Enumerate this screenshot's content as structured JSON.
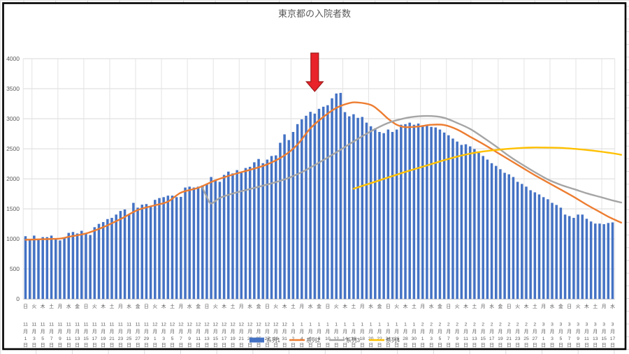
{
  "chart": {
    "title": "東京都の入院者数",
    "colors": {
      "bar": "#4472C4",
      "line2": "#ED7D31",
      "line3": "#A5A5A5",
      "line4": "#FFC000",
      "gridline": "#D9D9D9",
      "axis_text": "#595959",
      "arrow_fill": "#E8232A",
      "arrow_stroke": "#9E1B1B",
      "chart_border": "#000000"
    },
    "annotation": {
      "shape": "down-arrow",
      "points_at_date": "1月7日",
      "day_index": 67
    }
  },
  "chart_data": {
    "type": "bar",
    "title": "東京都の入院者数",
    "xlabel": "",
    "ylabel": "",
    "ylim": [
      0,
      4000
    ],
    "y_ticks": [
      0,
      500,
      1000,
      1500,
      2000,
      2500,
      3000,
      3500,
      4000
    ],
    "x_label_interval_days": 2,
    "x_start_label": "11月1日(日)",
    "x_end_label": "3月17日(水)",
    "num_days": 137,
    "x_labels": [
      {
        "w": "日",
        "m": 11,
        "d": 1
      },
      {
        "w": "火",
        "m": 11,
        "d": 3
      },
      {
        "w": "木",
        "m": 11,
        "d": 5
      },
      {
        "w": "土",
        "m": 11,
        "d": 7
      },
      {
        "w": "月",
        "m": 11,
        "d": 9
      },
      {
        "w": "水",
        "m": 11,
        "d": 11
      },
      {
        "w": "金",
        "m": 11,
        "d": 13
      },
      {
        "w": "日",
        "m": 11,
        "d": 15
      },
      {
        "w": "火",
        "m": 11,
        "d": 17
      },
      {
        "w": "木",
        "m": 11,
        "d": 19
      },
      {
        "w": "土",
        "m": 11,
        "d": 21
      },
      {
        "w": "月",
        "m": 11,
        "d": 23
      },
      {
        "w": "水",
        "m": 11,
        "d": 25
      },
      {
        "w": "金",
        "m": 11,
        "d": 27
      },
      {
        "w": "日",
        "m": 11,
        "d": 29
      },
      {
        "w": "火",
        "m": 12,
        "d": 1
      },
      {
        "w": "木",
        "m": 12,
        "d": 3
      },
      {
        "w": "土",
        "m": 12,
        "d": 5
      },
      {
        "w": "月",
        "m": 12,
        "d": 7
      },
      {
        "w": "水",
        "m": 12,
        "d": 9
      },
      {
        "w": "金",
        "m": 12,
        "d": 11
      },
      {
        "w": "日",
        "m": 12,
        "d": 13
      },
      {
        "w": "火",
        "m": 12,
        "d": 15
      },
      {
        "w": "木",
        "m": 12,
        "d": 17
      },
      {
        "w": "土",
        "m": 12,
        "d": 19
      },
      {
        "w": "月",
        "m": 12,
        "d": 21
      },
      {
        "w": "水",
        "m": 12,
        "d": 23
      },
      {
        "w": "金",
        "m": 12,
        "d": 25
      },
      {
        "w": "日",
        "m": 12,
        "d": 27
      },
      {
        "w": "火",
        "m": 12,
        "d": 29
      },
      {
        "w": "木",
        "m": 12,
        "d": 31
      },
      {
        "w": "土",
        "m": 1,
        "d": 2
      },
      {
        "w": "月",
        "m": 1,
        "d": 4
      },
      {
        "w": "水",
        "m": 1,
        "d": 6
      },
      {
        "w": "金",
        "m": 1,
        "d": 8
      },
      {
        "w": "日",
        "m": 1,
        "d": 10
      },
      {
        "w": "火",
        "m": 1,
        "d": 12
      },
      {
        "w": "木",
        "m": 1,
        "d": 14
      },
      {
        "w": "土",
        "m": 1,
        "d": 16
      },
      {
        "w": "月",
        "m": 1,
        "d": 18
      },
      {
        "w": "水",
        "m": 1,
        "d": 20
      },
      {
        "w": "金",
        "m": 1,
        "d": 22
      },
      {
        "w": "日",
        "m": 1,
        "d": 24
      },
      {
        "w": "火",
        "m": 1,
        "d": 26
      },
      {
        "w": "木",
        "m": 1,
        "d": 28
      },
      {
        "w": "土",
        "m": 1,
        "d": 30
      },
      {
        "w": "月",
        "m": 2,
        "d": 1
      },
      {
        "w": "水",
        "m": 2,
        "d": 3
      },
      {
        "w": "金",
        "m": 2,
        "d": 5
      },
      {
        "w": "日",
        "m": 2,
        "d": 7
      },
      {
        "w": "火",
        "m": 2,
        "d": 9
      },
      {
        "w": "木",
        "m": 2,
        "d": 11
      },
      {
        "w": "土",
        "m": 2,
        "d": 13
      },
      {
        "w": "月",
        "m": 2,
        "d": 15
      },
      {
        "w": "水",
        "m": 2,
        "d": 17
      },
      {
        "w": "金",
        "m": 2,
        "d": 19
      },
      {
        "w": "日",
        "m": 2,
        "d": 21
      },
      {
        "w": "火",
        "m": 2,
        "d": 23
      },
      {
        "w": "木",
        "m": 2,
        "d": 25
      },
      {
        "w": "土",
        "m": 2,
        "d": 27
      },
      {
        "w": "月",
        "m": 3,
        "d": 1
      },
      {
        "w": "水",
        "m": 3,
        "d": 3
      },
      {
        "w": "金",
        "m": 3,
        "d": 5
      },
      {
        "w": "日",
        "m": 3,
        "d": 7
      },
      {
        "w": "火",
        "m": 3,
        "d": 9
      },
      {
        "w": "木",
        "m": 3,
        "d": 11
      },
      {
        "w": "土",
        "m": 3,
        "d": 13
      },
      {
        "w": "月",
        "m": 3,
        "d": 15
      },
      {
        "w": "水",
        "m": 3,
        "d": 17
      }
    ],
    "series": [
      {
        "name": "系列1",
        "type": "bar",
        "color": "#4472C4",
        "values": [
          1045,
          985,
          1055,
          1000,
          1030,
          1030,
          1055,
          1000,
          975,
          1020,
          1100,
          1115,
          1090,
          1135,
          1100,
          1065,
          1195,
          1250,
          1280,
          1330,
          1350,
          1405,
          1465,
          1490,
          1405,
          1600,
          1520,
          1570,
          1580,
          1545,
          1650,
          1680,
          1695,
          1720,
          1720,
          1695,
          1700,
          1855,
          1870,
          1855,
          1870,
          1890,
          1915,
          2030,
          1985,
          1950,
          2065,
          2120,
          2090,
          2145,
          2100,
          2180,
          2200,
          2275,
          2330,
          2260,
          2320,
          2380,
          2390,
          2600,
          2740,
          2645,
          2780,
          2910,
          2990,
          3050,
          3115,
          3085,
          3165,
          3200,
          3225,
          3340,
          3420,
          3430,
          3110,
          3040,
          3075,
          3015,
          3030,
          2935,
          2875,
          2840,
          2780,
          2760,
          2820,
          2780,
          2820,
          2900,
          2910,
          2935,
          2900,
          2920,
          2875,
          2900,
          2865,
          2855,
          2820,
          2770,
          2725,
          2670,
          2620,
          2565,
          2575,
          2540,
          2495,
          2435,
          2380,
          2320,
          2260,
          2215,
          2160,
          2100,
          2075,
          2030,
          1950,
          1915,
          1870,
          1810,
          1775,
          1740,
          1695,
          1660,
          1600,
          1565,
          1520,
          1405,
          1380,
          1350,
          1405,
          1405,
          1335,
          1290,
          1255,
          1255,
          1245,
          1265,
          1275
        ]
      },
      {
        "name": "系列2",
        "type": "line",
        "color": "#ED7D31",
        "points": [
          [
            0,
            985
          ],
          [
            4,
            995
          ],
          [
            8,
            1005
          ],
          [
            10,
            1035
          ],
          [
            14,
            1090
          ],
          [
            18,
            1195
          ],
          [
            22,
            1330
          ],
          [
            26,
            1480
          ],
          [
            30,
            1560
          ],
          [
            33,
            1620
          ],
          [
            36,
            1770
          ],
          [
            40,
            1850
          ],
          [
            44,
            1975
          ],
          [
            48,
            2070
          ],
          [
            52,
            2150
          ],
          [
            56,
            2240
          ],
          [
            60,
            2390
          ],
          [
            63,
            2570
          ],
          [
            66,
            2840
          ],
          [
            69,
            3030
          ],
          [
            72,
            3180
          ],
          [
            75,
            3260
          ],
          [
            77,
            3270
          ],
          [
            80,
            3230
          ],
          [
            82,
            3130
          ],
          [
            84,
            3000
          ],
          [
            86,
            2900
          ],
          [
            88,
            2860
          ],
          [
            91,
            2870
          ],
          [
            94,
            2900
          ],
          [
            97,
            2895
          ],
          [
            100,
            2820
          ],
          [
            103,
            2700
          ],
          [
            106,
            2580
          ],
          [
            109,
            2450
          ],
          [
            112,
            2320
          ],
          [
            115,
            2190
          ],
          [
            118,
            2060
          ],
          [
            121,
            1940
          ],
          [
            124,
            1820
          ],
          [
            127,
            1700
          ],
          [
            130,
            1570
          ],
          [
            133,
            1450
          ],
          [
            135,
            1370
          ],
          [
            138,
            1270
          ]
        ]
      },
      {
        "name": "系列3",
        "type": "line",
        "color": "#A5A5A5",
        "points": [
          [
            41,
            1850
          ],
          [
            42,
            1700
          ],
          [
            43,
            1590
          ],
          [
            45,
            1680
          ],
          [
            48,
            1755
          ],
          [
            52,
            1830
          ],
          [
            56,
            1905
          ],
          [
            60,
            1990
          ],
          [
            64,
            2110
          ],
          [
            68,
            2270
          ],
          [
            72,
            2440
          ],
          [
            76,
            2620
          ],
          [
            80,
            2790
          ],
          [
            84,
            2930
          ],
          [
            88,
            3010
          ],
          [
            91,
            3040
          ],
          [
            94,
            3045
          ],
          [
            97,
            3015
          ],
          [
            100,
            2930
          ],
          [
            103,
            2830
          ],
          [
            106,
            2690
          ],
          [
            109,
            2540
          ],
          [
            112,
            2380
          ],
          [
            115,
            2240
          ],
          [
            118,
            2110
          ],
          [
            121,
            1990
          ],
          [
            124,
            1900
          ],
          [
            127,
            1830
          ],
          [
            130,
            1760
          ],
          [
            133,
            1700
          ],
          [
            136,
            1640
          ],
          [
            138,
            1605
          ]
        ]
      },
      {
        "name": "系列4",
        "type": "line",
        "color": "#FFC000",
        "points": [
          [
            76,
            1835
          ],
          [
            79,
            1905
          ],
          [
            82,
            1975
          ],
          [
            85,
            2045
          ],
          [
            88,
            2115
          ],
          [
            91,
            2180
          ],
          [
            94,
            2245
          ],
          [
            97,
            2310
          ],
          [
            100,
            2370
          ],
          [
            103,
            2420
          ],
          [
            106,
            2455
          ],
          [
            109,
            2480
          ],
          [
            112,
            2500
          ],
          [
            115,
            2515
          ],
          [
            118,
            2522
          ],
          [
            121,
            2520
          ],
          [
            124,
            2515
          ],
          [
            127,
            2500
          ],
          [
            130,
            2480
          ],
          [
            133,
            2455
          ],
          [
            136,
            2425
          ],
          [
            138,
            2400
          ]
        ]
      }
    ],
    "legend": {
      "position": "bottom",
      "entries": [
        "系列1",
        "系列2",
        "系列3",
        "系列4"
      ]
    },
    "grid": true
  }
}
